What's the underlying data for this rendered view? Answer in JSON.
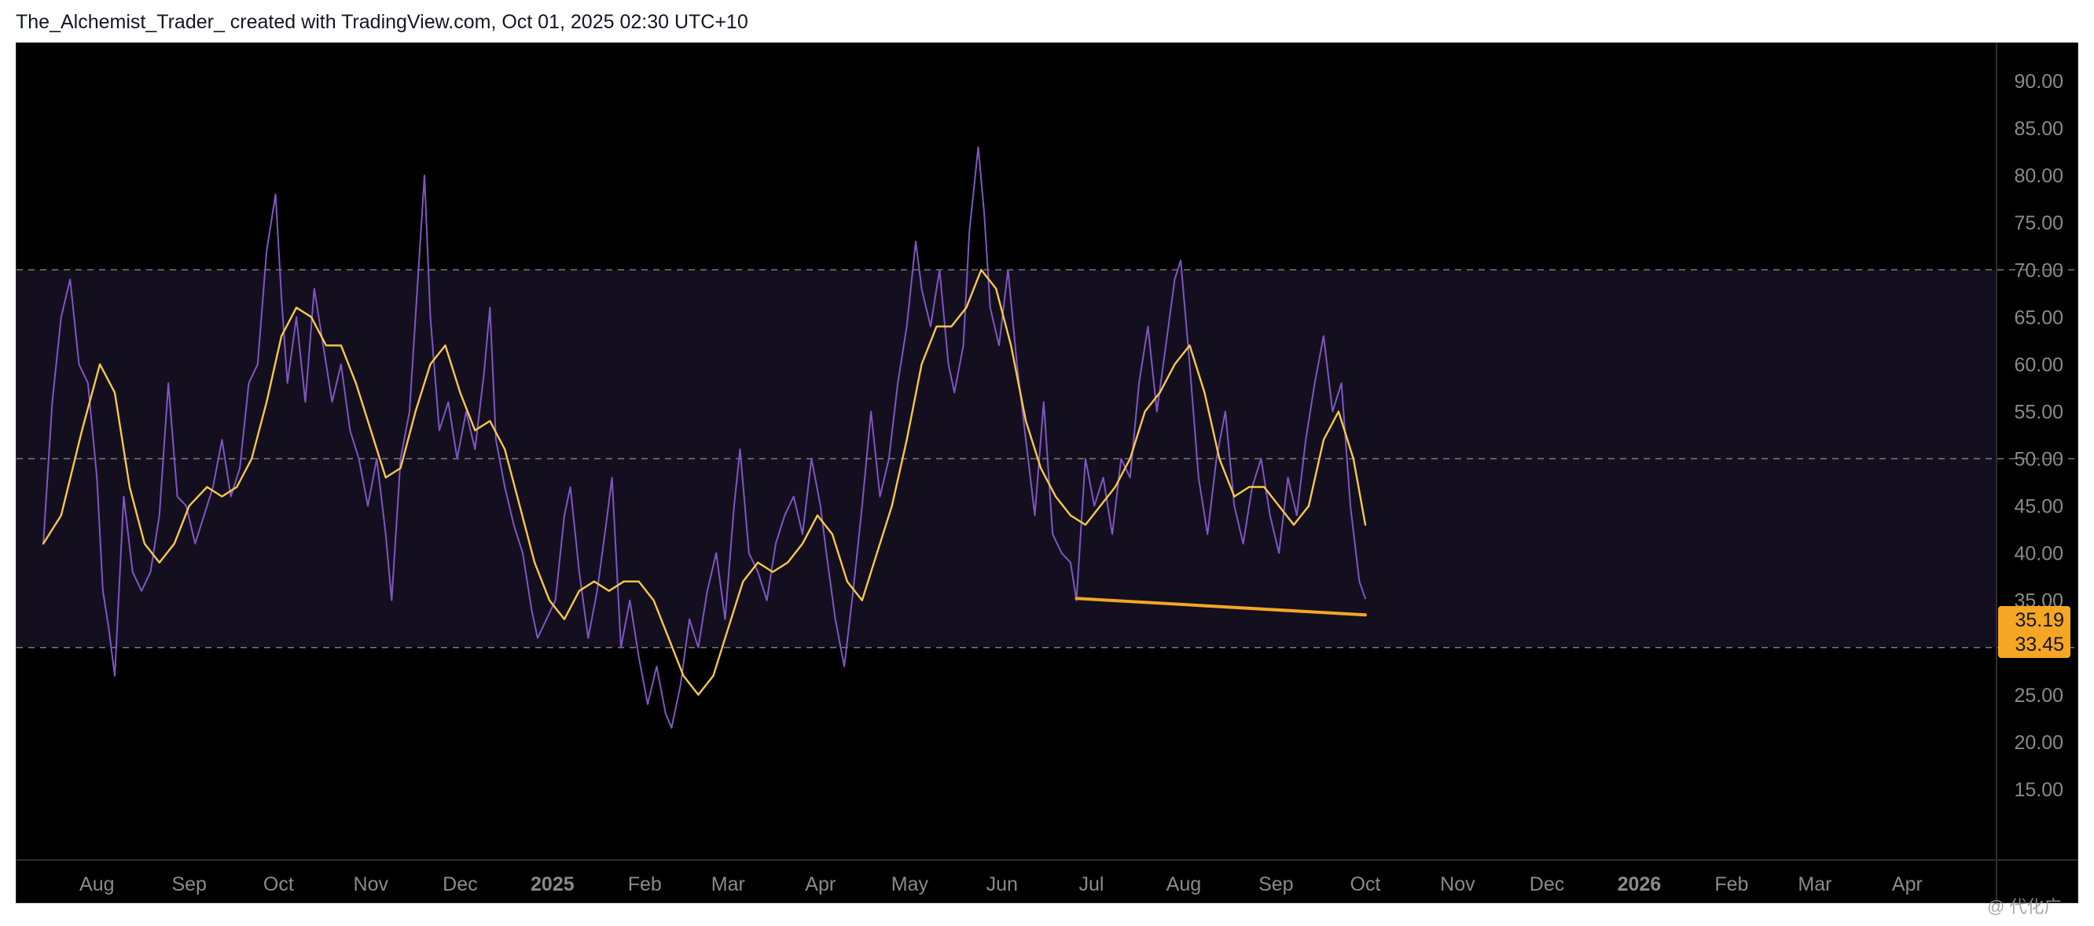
{
  "header": {
    "text": "The_Alchemist_Trader_ created with TradingView.com, Oct 01, 2025 02:30 UTC+10"
  },
  "watermark": {
    "text": "@ 代化广"
  },
  "colors": {
    "background": "#000000",
    "rsi_line": "#7e57c2",
    "ma_line": "#f7c948",
    "trendline": "#f5a623",
    "band_fill": "#140f1f",
    "grid_dash": "#7a7a7a",
    "axis_text": "#8a8a8a",
    "badge_bg": "#f5a623",
    "badge_text": "#131722"
  },
  "chart_data": {
    "type": "line",
    "title": "",
    "xlabel": "",
    "ylabel": "",
    "ylim": [
      7.5,
      94
    ],
    "x_ticks": [
      {
        "label": "Aug",
        "date": "2024-08-01",
        "bold": false
      },
      {
        "label": "Sep",
        "date": "2024-09-01",
        "bold": false
      },
      {
        "label": "Oct",
        "date": "2024-10-01",
        "bold": false
      },
      {
        "label": "Nov",
        "date": "2024-11-01",
        "bold": false
      },
      {
        "label": "Dec",
        "date": "2024-12-01",
        "bold": false
      },
      {
        "label": "2025",
        "date": "2025-01-01",
        "bold": true
      },
      {
        "label": "Feb",
        "date": "2025-02-01",
        "bold": false
      },
      {
        "label": "Mar",
        "date": "2025-03-01",
        "bold": false
      },
      {
        "label": "Apr",
        "date": "2025-04-01",
        "bold": false
      },
      {
        "label": "May",
        "date": "2025-05-01",
        "bold": false
      },
      {
        "label": "Jun",
        "date": "2025-06-01",
        "bold": false
      },
      {
        "label": "Jul",
        "date": "2025-07-01",
        "bold": false
      },
      {
        "label": "Aug",
        "date": "2025-08-01",
        "bold": false
      },
      {
        "label": "Sep",
        "date": "2025-09-01",
        "bold": false
      },
      {
        "label": "Oct",
        "date": "2025-10-01",
        "bold": false
      },
      {
        "label": "Nov",
        "date": "2025-11-01",
        "bold": false
      },
      {
        "label": "Dec",
        "date": "2025-12-01",
        "bold": false
      },
      {
        "label": "2026",
        "date": "2026-01-01",
        "bold": true
      },
      {
        "label": "Feb",
        "date": "2026-02-01",
        "bold": false
      },
      {
        "label": "Mar",
        "date": "2026-03-01",
        "bold": false
      },
      {
        "label": "Apr",
        "date": "2026-04-01",
        "bold": false
      }
    ],
    "y_ticks": [
      "15.00",
      "20.00",
      "25.00",
      "30.00",
      "35.00",
      "40.00",
      "45.00",
      "50.00",
      "55.00",
      "60.00",
      "65.00",
      "70.00",
      "75.00",
      "80.00",
      "85.00",
      "90.00"
    ],
    "levels": [
      70,
      50,
      30
    ],
    "band": [
      30,
      70
    ],
    "series": [
      {
        "color": "#7e57c2",
        "points": [
          [
            "2024-07-14",
            41
          ],
          [
            "2024-07-17",
            56
          ],
          [
            "2024-07-20",
            65
          ],
          [
            "2024-07-23",
            69
          ],
          [
            "2024-07-26",
            60
          ],
          [
            "2024-07-29",
            58
          ],
          [
            "2024-08-01",
            48
          ],
          [
            "2024-08-03",
            36
          ],
          [
            "2024-08-05",
            32
          ],
          [
            "2024-08-07",
            27
          ],
          [
            "2024-08-10",
            46
          ],
          [
            "2024-08-13",
            38
          ],
          [
            "2024-08-16",
            36
          ],
          [
            "2024-08-19",
            38
          ],
          [
            "2024-08-22",
            44
          ],
          [
            "2024-08-25",
            58
          ],
          [
            "2024-08-28",
            46
          ],
          [
            "2024-08-31",
            45
          ],
          [
            "2024-09-03",
            41
          ],
          [
            "2024-09-06",
            44
          ],
          [
            "2024-09-09",
            47
          ],
          [
            "2024-09-12",
            52
          ],
          [
            "2024-09-15",
            46
          ],
          [
            "2024-09-18",
            49
          ],
          [
            "2024-09-21",
            58
          ],
          [
            "2024-09-24",
            60
          ],
          [
            "2024-09-27",
            72
          ],
          [
            "2024-09-30",
            78
          ],
          [
            "2024-10-02",
            67
          ],
          [
            "2024-10-04",
            58
          ],
          [
            "2024-10-07",
            65
          ],
          [
            "2024-10-10",
            56
          ],
          [
            "2024-10-13",
            68
          ],
          [
            "2024-10-16",
            62
          ],
          [
            "2024-10-19",
            56
          ],
          [
            "2024-10-22",
            60
          ],
          [
            "2024-10-25",
            53
          ],
          [
            "2024-10-28",
            50
          ],
          [
            "2024-10-31",
            45
          ],
          [
            "2024-11-03",
            50
          ],
          [
            "2024-11-06",
            42
          ],
          [
            "2024-11-08",
            35
          ],
          [
            "2024-11-11",
            50
          ],
          [
            "2024-11-14",
            55
          ],
          [
            "2024-11-17",
            70
          ],
          [
            "2024-11-19",
            80
          ],
          [
            "2024-11-21",
            65
          ],
          [
            "2024-11-24",
            53
          ],
          [
            "2024-11-27",
            56
          ],
          [
            "2024-11-30",
            50
          ],
          [
            "2024-12-03",
            55
          ],
          [
            "2024-12-06",
            51
          ],
          [
            "2024-12-09",
            59
          ],
          [
            "2024-12-11",
            66
          ],
          [
            "2024-12-13",
            52
          ],
          [
            "2024-12-16",
            47
          ],
          [
            "2024-12-19",
            43
          ],
          [
            "2024-12-22",
            40
          ],
          [
            "2024-12-25",
            34
          ],
          [
            "2024-12-27",
            31
          ],
          [
            "2024-12-30",
            33
          ],
          [
            "2025-01-02",
            35
          ],
          [
            "2025-01-05",
            44
          ],
          [
            "2025-01-07",
            47
          ],
          [
            "2025-01-10",
            38
          ],
          [
            "2025-01-13",
            31
          ],
          [
            "2025-01-16",
            36
          ],
          [
            "2025-01-19",
            43
          ],
          [
            "2025-01-21",
            48
          ],
          [
            "2025-01-24",
            30
          ],
          [
            "2025-01-27",
            35
          ],
          [
            "2025-01-30",
            29
          ],
          [
            "2025-02-02",
            24
          ],
          [
            "2025-02-05",
            28
          ],
          [
            "2025-02-08",
            23
          ],
          [
            "2025-02-10",
            21.5
          ],
          [
            "2025-02-13",
            26
          ],
          [
            "2025-02-16",
            33
          ],
          [
            "2025-02-19",
            30
          ],
          [
            "2025-02-22",
            36
          ],
          [
            "2025-02-25",
            40
          ],
          [
            "2025-02-28",
            33
          ],
          [
            "2025-03-03",
            45
          ],
          [
            "2025-03-05",
            51
          ],
          [
            "2025-03-08",
            40
          ],
          [
            "2025-03-11",
            38
          ],
          [
            "2025-03-14",
            35
          ],
          [
            "2025-03-17",
            41
          ],
          [
            "2025-03-20",
            44
          ],
          [
            "2025-03-23",
            46
          ],
          [
            "2025-03-26",
            42
          ],
          [
            "2025-03-29",
            50
          ],
          [
            "2025-04-01",
            45
          ],
          [
            "2025-04-03",
            40
          ],
          [
            "2025-04-06",
            33
          ],
          [
            "2025-04-09",
            28
          ],
          [
            "2025-04-12",
            36
          ],
          [
            "2025-04-15",
            45
          ],
          [
            "2025-04-18",
            55
          ],
          [
            "2025-04-21",
            46
          ],
          [
            "2025-04-24",
            50
          ],
          [
            "2025-04-27",
            58
          ],
          [
            "2025-04-30",
            64
          ],
          [
            "2025-05-03",
            73
          ],
          [
            "2025-05-05",
            68
          ],
          [
            "2025-05-08",
            64
          ],
          [
            "2025-05-11",
            70
          ],
          [
            "2025-05-14",
            60
          ],
          [
            "2025-05-16",
            57
          ],
          [
            "2025-05-19",
            62
          ],
          [
            "2025-05-21",
            74
          ],
          [
            "2025-05-24",
            83
          ],
          [
            "2025-05-26",
            76
          ],
          [
            "2025-05-28",
            66
          ],
          [
            "2025-05-31",
            62
          ],
          [
            "2025-06-03",
            70
          ],
          [
            "2025-06-06",
            60
          ],
          [
            "2025-06-09",
            52
          ],
          [
            "2025-06-12",
            44
          ],
          [
            "2025-06-15",
            56
          ],
          [
            "2025-06-18",
            42
          ],
          [
            "2025-06-21",
            40
          ],
          [
            "2025-06-24",
            39
          ],
          [
            "2025-06-26",
            35
          ],
          [
            "2025-06-29",
            50
          ],
          [
            "2025-07-02",
            45
          ],
          [
            "2025-07-05",
            48
          ],
          [
            "2025-07-08",
            42
          ],
          [
            "2025-07-11",
            50
          ],
          [
            "2025-07-14",
            48
          ],
          [
            "2025-07-17",
            58
          ],
          [
            "2025-07-20",
            64
          ],
          [
            "2025-07-23",
            55
          ],
          [
            "2025-07-26",
            62
          ],
          [
            "2025-07-29",
            69
          ],
          [
            "2025-07-31",
            71
          ],
          [
            "2025-08-03",
            60
          ],
          [
            "2025-08-06",
            48
          ],
          [
            "2025-08-09",
            42
          ],
          [
            "2025-08-12",
            50
          ],
          [
            "2025-08-15",
            55
          ],
          [
            "2025-08-18",
            45
          ],
          [
            "2025-08-21",
            41
          ],
          [
            "2025-08-24",
            47
          ],
          [
            "2025-08-27",
            50
          ],
          [
            "2025-08-30",
            44
          ],
          [
            "2025-09-02",
            40
          ],
          [
            "2025-09-05",
            48
          ],
          [
            "2025-09-08",
            44
          ],
          [
            "2025-09-11",
            52
          ],
          [
            "2025-09-14",
            58
          ],
          [
            "2025-09-17",
            63
          ],
          [
            "2025-09-20",
            55
          ],
          [
            "2025-09-23",
            58
          ],
          [
            "2025-09-26",
            45
          ],
          [
            "2025-09-29",
            37
          ],
          [
            "2025-10-01",
            35.19
          ]
        ]
      },
      {
        "color": "#f7c948",
        "points": [
          [
            "2024-07-14",
            41
          ],
          [
            "2024-07-20",
            44
          ],
          [
            "2024-07-27",
            53
          ],
          [
            "2024-08-02",
            60
          ],
          [
            "2024-08-07",
            57
          ],
          [
            "2024-08-12",
            47
          ],
          [
            "2024-08-17",
            41
          ],
          [
            "2024-08-22",
            39
          ],
          [
            "2024-08-27",
            41
          ],
          [
            "2024-09-01",
            45
          ],
          [
            "2024-09-07",
            47
          ],
          [
            "2024-09-12",
            46
          ],
          [
            "2024-09-17",
            47
          ],
          [
            "2024-09-22",
            50
          ],
          [
            "2024-09-27",
            56
          ],
          [
            "2024-10-02",
            63
          ],
          [
            "2024-10-07",
            66
          ],
          [
            "2024-10-12",
            65
          ],
          [
            "2024-10-17",
            62
          ],
          [
            "2024-10-22",
            62
          ],
          [
            "2024-10-27",
            58
          ],
          [
            "2024-11-01",
            53
          ],
          [
            "2024-11-06",
            48
          ],
          [
            "2024-11-11",
            49
          ],
          [
            "2024-11-16",
            55
          ],
          [
            "2024-11-21",
            60
          ],
          [
            "2024-11-26",
            62
          ],
          [
            "2024-12-01",
            57
          ],
          [
            "2024-12-06",
            53
          ],
          [
            "2024-12-11",
            54
          ],
          [
            "2024-12-16",
            51
          ],
          [
            "2024-12-21",
            45
          ],
          [
            "2024-12-26",
            39
          ],
          [
            "2024-12-31",
            35
          ],
          [
            "2025-01-05",
            33
          ],
          [
            "2025-01-10",
            36
          ],
          [
            "2025-01-15",
            37
          ],
          [
            "2025-01-20",
            36
          ],
          [
            "2025-01-25",
            37
          ],
          [
            "2025-01-30",
            37
          ],
          [
            "2025-02-04",
            35
          ],
          [
            "2025-02-09",
            31
          ],
          [
            "2025-02-14",
            27
          ],
          [
            "2025-02-19",
            25
          ],
          [
            "2025-02-24",
            27
          ],
          [
            "2025-03-01",
            32
          ],
          [
            "2025-03-06",
            37
          ],
          [
            "2025-03-11",
            39
          ],
          [
            "2025-03-16",
            38
          ],
          [
            "2025-03-21",
            39
          ],
          [
            "2025-03-26",
            41
          ],
          [
            "2025-03-31",
            44
          ],
          [
            "2025-04-05",
            42
          ],
          [
            "2025-04-10",
            37
          ],
          [
            "2025-04-15",
            35
          ],
          [
            "2025-04-20",
            40
          ],
          [
            "2025-04-25",
            45
          ],
          [
            "2025-04-30",
            52
          ],
          [
            "2025-05-05",
            60
          ],
          [
            "2025-05-10",
            64
          ],
          [
            "2025-05-15",
            64
          ],
          [
            "2025-05-20",
            66
          ],
          [
            "2025-05-25",
            70
          ],
          [
            "2025-05-30",
            68
          ],
          [
            "2025-06-04",
            62
          ],
          [
            "2025-06-09",
            54
          ],
          [
            "2025-06-14",
            49
          ],
          [
            "2025-06-19",
            46
          ],
          [
            "2025-06-24",
            44
          ],
          [
            "2025-06-29",
            43
          ],
          [
            "2025-07-04",
            45
          ],
          [
            "2025-07-09",
            47
          ],
          [
            "2025-07-14",
            50
          ],
          [
            "2025-07-19",
            55
          ],
          [
            "2025-07-24",
            57
          ],
          [
            "2025-07-29",
            60
          ],
          [
            "2025-08-03",
            62
          ],
          [
            "2025-08-08",
            57
          ],
          [
            "2025-08-13",
            50
          ],
          [
            "2025-08-18",
            46
          ],
          [
            "2025-08-23",
            47
          ],
          [
            "2025-08-28",
            47
          ],
          [
            "2025-09-02",
            45
          ],
          [
            "2025-09-07",
            43
          ],
          [
            "2025-09-12",
            45
          ],
          [
            "2025-09-17",
            52
          ],
          [
            "2025-09-22",
            55
          ],
          [
            "2025-09-27",
            50
          ],
          [
            "2025-10-01",
            43
          ]
        ]
      }
    ],
    "trendline": {
      "from": [
        "2025-06-26",
        35.2
      ],
      "to": [
        "2025-10-01",
        33.45
      ]
    },
    "price_labels": [
      "35.19",
      "33.45"
    ],
    "grid": false,
    "legend": "none"
  }
}
